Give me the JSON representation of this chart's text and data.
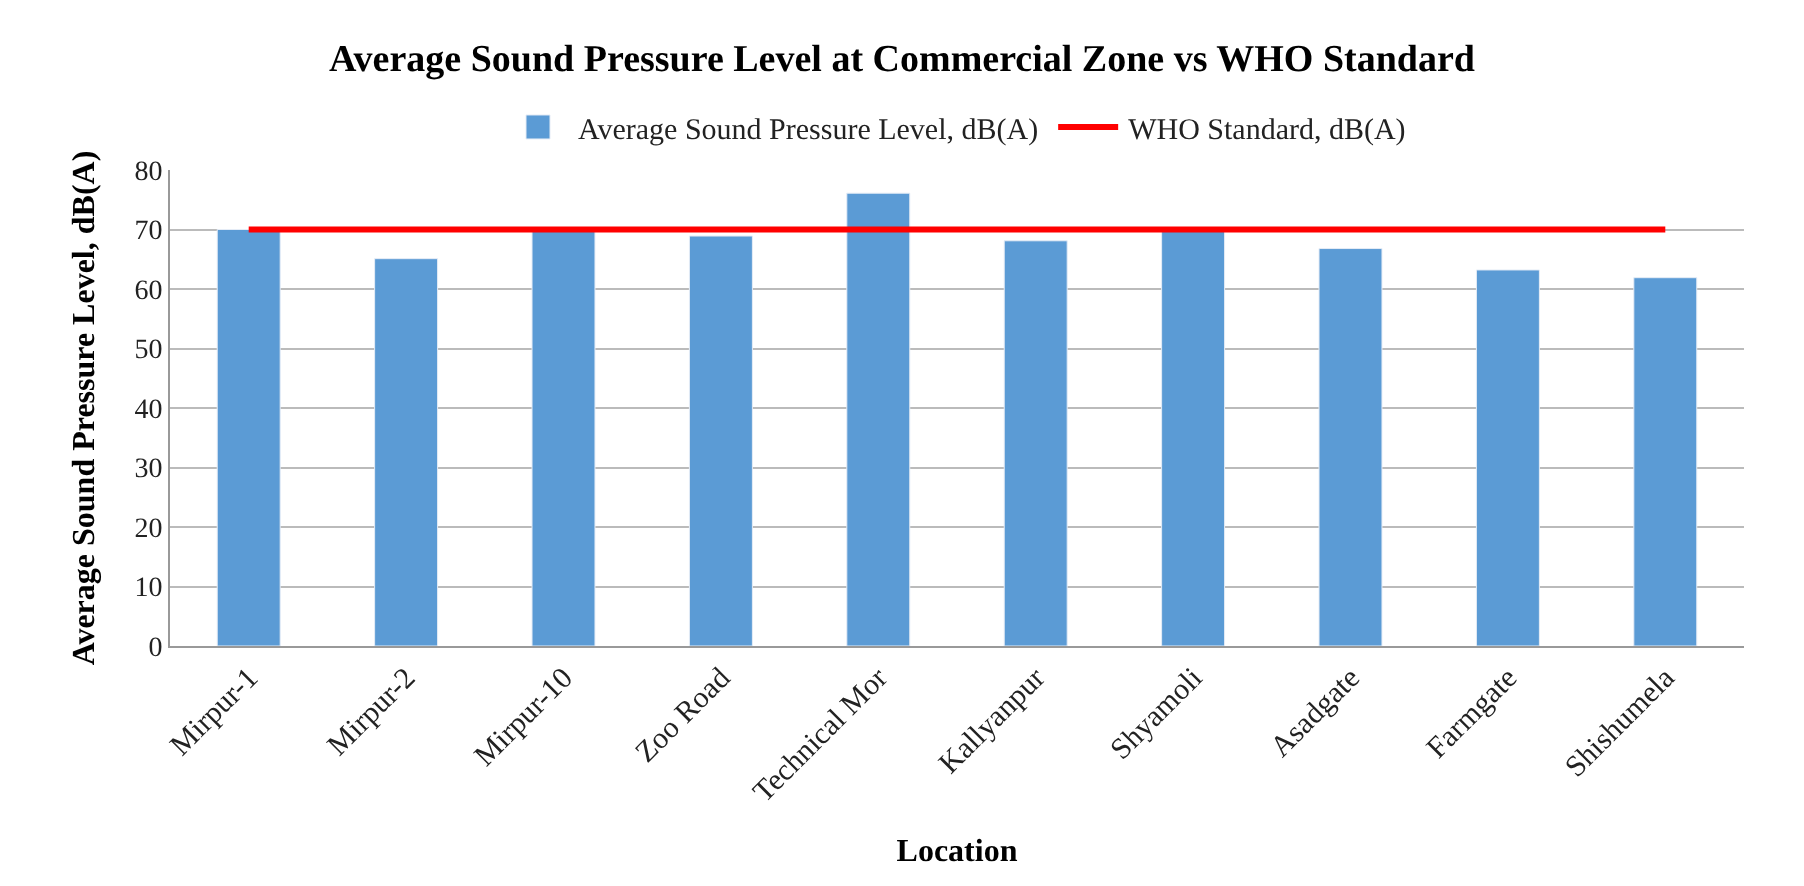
{
  "chart_data": {
    "type": "bar",
    "title": "Average Sound Pressure Level at Commercial Zone vs WHO Standard",
    "xlabel": "Location",
    "ylabel": "Average Sound Pressure Level, dB(A)",
    "categories": [
      "Mirpur-1",
      "Mirpur-2",
      "Mirpur-10",
      "Zoo Road",
      "Technical Mor",
      "Kallyanpur",
      "Shyamoli",
      "Asadgate",
      "Farmgate",
      "Shishumela"
    ],
    "series": [
      {
        "name": "Average Sound Pressure Level, dB(A)",
        "color": "#5b9bd5",
        "values": [
          70,
          65.1,
          70,
          68.9,
          76.1,
          68.1,
          70,
          66.8,
          63.2,
          61.9
        ]
      },
      {
        "name": "WHO Standard, dB(A)",
        "type": "line",
        "color": "#ff0000",
        "values": [
          70,
          70,
          70,
          70,
          70,
          70,
          70,
          70,
          70,
          70
        ]
      }
    ],
    "ylim": [
      0,
      80
    ],
    "yticks": [
      0,
      10,
      20,
      30,
      40,
      50,
      60,
      70,
      80
    ],
    "grid": "y",
    "legend": "top",
    "marker": "none",
    "line_style": "solid"
  }
}
